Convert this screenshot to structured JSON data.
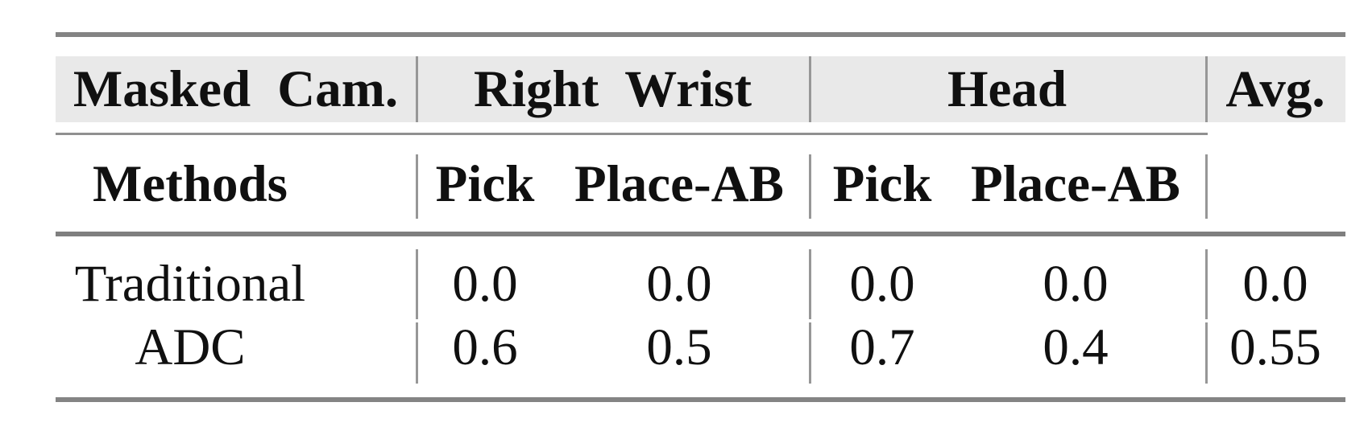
{
  "table": {
    "header_row1": {
      "masked_cam": "Masked Cam.",
      "right_wrist": "Right Wrist",
      "head": "Head",
      "avg": "Avg."
    },
    "header_row2": {
      "methods": "Methods",
      "rw_pick": "Pick",
      "rw_place": "Place-AB",
      "head_pick": "Pick",
      "head_place": "Place-AB"
    },
    "rows": [
      {
        "method": "Traditional",
        "rw_pick": "0.0",
        "rw_place": "0.0",
        "head_pick": "0.0",
        "head_place": "0.0",
        "avg": "0.0"
      },
      {
        "method": "ADC",
        "rw_pick": "0.6",
        "rw_place": "0.5",
        "head_pick": "0.7",
        "head_place": "0.4",
        "avg": "0.55"
      }
    ]
  },
  "colors": {
    "background": "#ffffff",
    "header_band": "#e9e9e9",
    "thick_rule": "#848484",
    "mid_rule": "#7f7f7f",
    "thin_rule": "#909090",
    "column_divider": "#979797",
    "text": "#101010"
  },
  "chart_data": {
    "type": "table",
    "title": "",
    "column_groups": [
      {
        "label": "Masked Cam.",
        "span": 1
      },
      {
        "label": "Right Wrist",
        "span": 2
      },
      {
        "label": "Head",
        "span": 2
      },
      {
        "label": "Avg.",
        "span": 1
      }
    ],
    "columns": [
      "Methods",
      "Right Wrist Pick",
      "Right Wrist Place-AB",
      "Head Pick",
      "Head Place-AB",
      "Avg."
    ],
    "rows": [
      [
        "Traditional",
        0.0,
        0.0,
        0.0,
        0.0,
        0.0
      ],
      [
        "ADC",
        0.6,
        0.5,
        0.7,
        0.4,
        0.55
      ]
    ]
  }
}
